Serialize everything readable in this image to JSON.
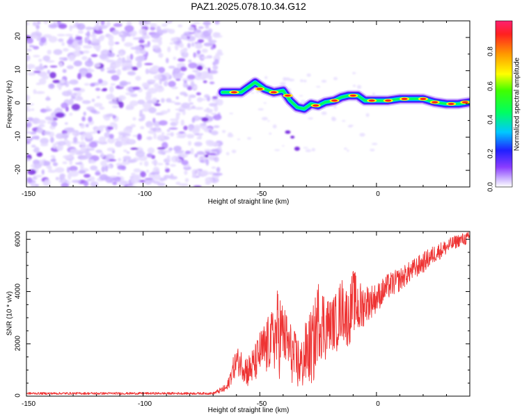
{
  "title": "PAZ1.2025.078.10.34.G12",
  "chart_data": [
    {
      "type": "heatmap",
      "xlabel": "Height of straight line (km)",
      "ylabel": "Frequency (Hz)",
      "xlim": [
        -150,
        40
      ],
      "ylim": [
        -25,
        25
      ],
      "xticks": [
        "-150",
        "-100",
        "-50",
        "0"
      ],
      "yticks": [
        "20",
        "10",
        "0",
        "-10",
        "-20"
      ],
      "colorbar": {
        "label": "Normalized spectral amplitude",
        "range": [
          0,
          1
        ],
        "ticks": [
          "0.0",
          "0.2",
          "0.4",
          "0.6",
          "0.8"
        ]
      },
      "ridge": {
        "x": [
          -66,
          -62,
          -58,
          -55,
          -52,
          -48,
          -44,
          -40,
          -37,
          -34,
          -31,
          -28,
          -25,
          -22,
          -18,
          -15,
          -12,
          -10,
          -8,
          -5,
          -2,
          0,
          5,
          10,
          15,
          20,
          25,
          30,
          35,
          40
        ],
        "y": [
          3.5,
          3.5,
          3.5,
          5,
          6.5,
          4.5,
          3.5,
          4,
          1,
          -1,
          -1.5,
          0,
          -0.5,
          0.5,
          1,
          2,
          2.5,
          2.5,
          2.5,
          1,
          1,
          1,
          1,
          1.5,
          1.5,
          1.5,
          0.5,
          0,
          0,
          0.5
        ]
      },
      "noise_region_x": [
        -150,
        -67
      ]
    },
    {
      "type": "line",
      "xlabel": "Height of straight line (km)",
      "ylabel": "SNR (10 * v/v)",
      "xlim": [
        -150,
        40
      ],
      "ylim": [
        0,
        6300
      ],
      "xticks": [
        "-150",
        "-100",
        "-50",
        "0"
      ],
      "yticks": [
        "0",
        "2000",
        "4000",
        "6000"
      ],
      "color": "#ee3333",
      "envelope": {
        "x": [
          -150,
          -70,
          -64,
          -62,
          -60,
          -58,
          -55,
          -52,
          -50,
          -47,
          -45,
          -42,
          -40,
          -38,
          -35,
          -32,
          -30,
          -27,
          -25,
          -22,
          -20,
          -17,
          -15,
          -12,
          -10,
          -7,
          -5,
          -2,
          0,
          5,
          10,
          15,
          20,
          25,
          30,
          35,
          40
        ],
        "lo": [
          60,
          60,
          150,
          500,
          800,
          700,
          300,
          500,
          800,
          700,
          1200,
          500,
          1200,
          900,
          200,
          200,
          400,
          400,
          1500,
          1300,
          1800,
          1700,
          2200,
          1800,
          2500,
          2200,
          2800,
          3000,
          3200,
          3700,
          4000,
          4400,
          4700,
          5100,
          5400,
          5700,
          5800
        ],
        "hi": [
          150,
          150,
          500,
          1300,
          1900,
          1800,
          1600,
          2000,
          2500,
          3000,
          3200,
          4300,
          3600,
          3100,
          2500,
          2200,
          3000,
          3500,
          4500,
          4100,
          3700,
          4000,
          4600,
          4100,
          4900,
          4400,
          4300,
          4300,
          4300,
          4700,
          4900,
          5200,
          5500,
          5800,
          6000,
          6200,
          6300
        ]
      }
    }
  ]
}
